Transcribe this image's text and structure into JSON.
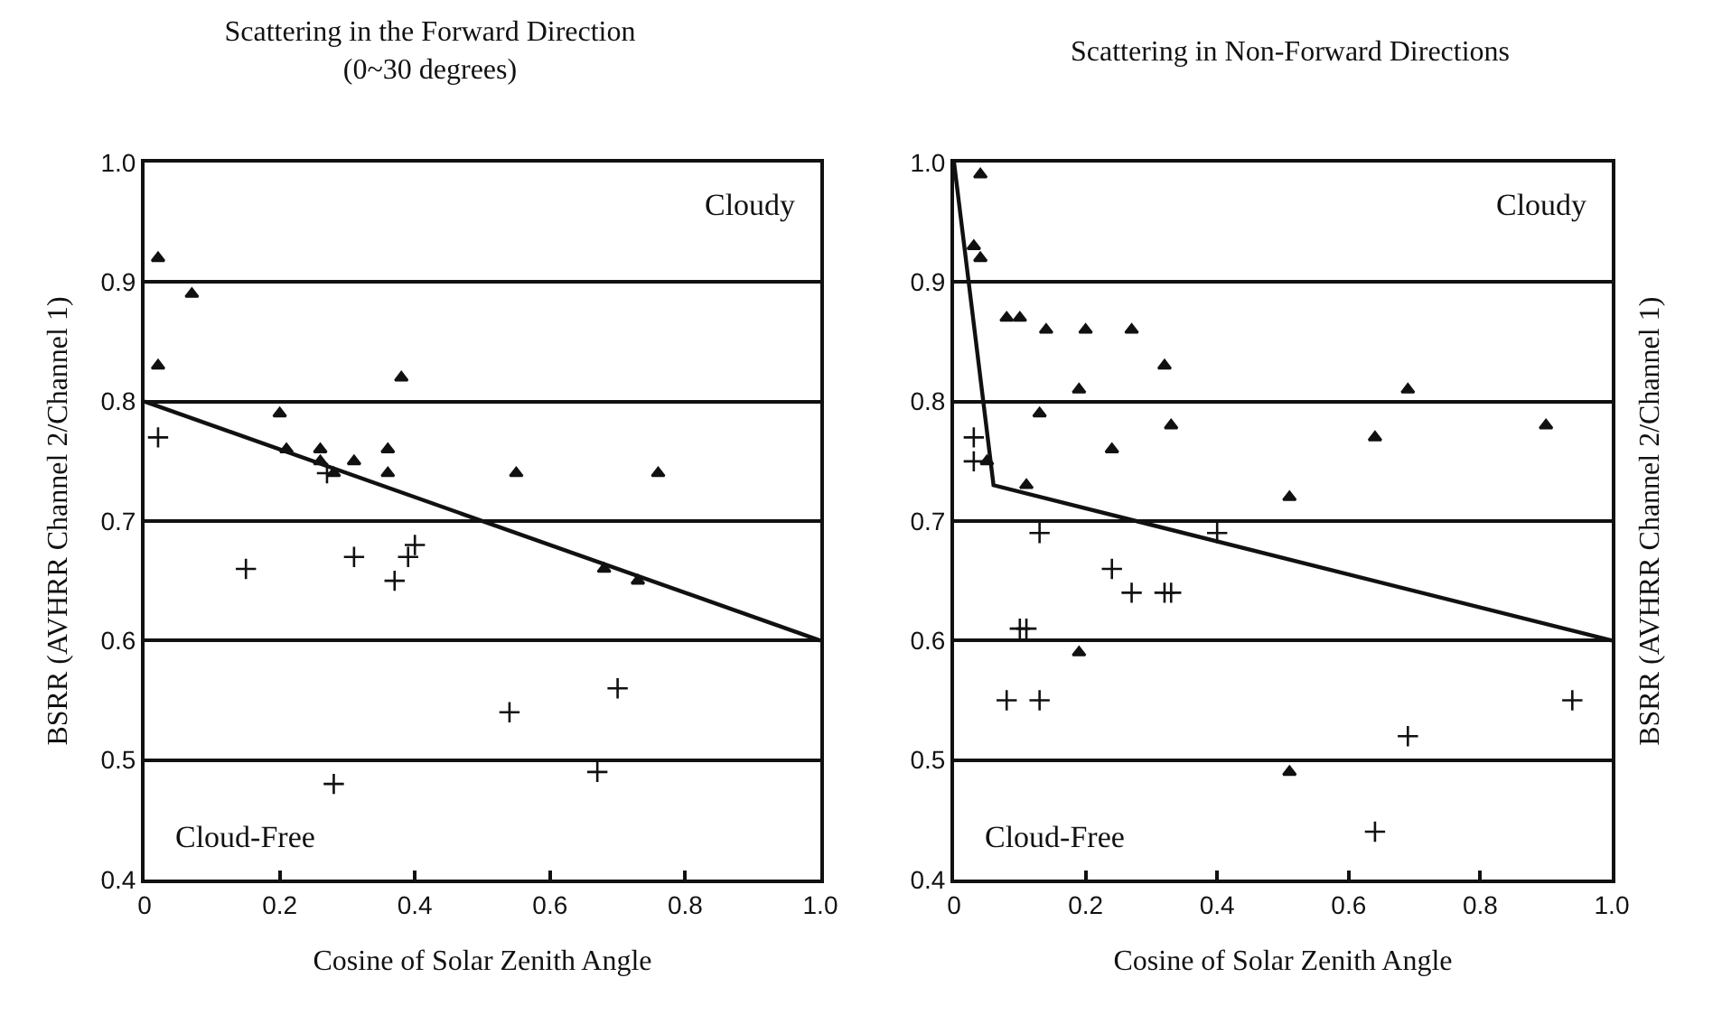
{
  "chart_data": [
    {
      "type": "scatter",
      "title": "Scattering in the Forward Direction\n(0~30 degrees)",
      "xlabel": "Cosine of Solar Zenith Angle",
      "ylabel": "BSRR (AVHRR Channel 2/Channel 1)",
      "annotations": [
        "Cloudy",
        "Cloud-Free"
      ],
      "xlim": [
        0,
        1
      ],
      "ylim": [
        0.4,
        1
      ],
      "xticks": [
        0,
        0.2,
        0.4,
        0.6,
        0.8,
        {
          "value": 1,
          "label": "1.0"
        }
      ],
      "yticks": [
        0.4,
        0.5,
        0.6,
        0.7,
        0.8,
        0.9,
        {
          "value": 1,
          "label": "1.0"
        }
      ],
      "grid": "y",
      "series": [
        {
          "type": "scatter",
          "marker": "triangle",
          "color": "#111111",
          "x": [
            0.02,
            0.02,
            0.07,
            0.2,
            0.21,
            0.26,
            0.26,
            0.28,
            0.31,
            0.36,
            0.36,
            0.38,
            0.55,
            0.76,
            0.68,
            0.73
          ],
          "values": [
            0.92,
            0.83,
            0.89,
            0.79,
            0.76,
            0.76,
            0.75,
            0.74,
            0.75,
            0.74,
            0.76,
            0.82,
            0.74,
            0.74,
            0.66,
            0.65
          ]
        },
        {
          "type": "scatter",
          "marker": "cross",
          "color": "#111111",
          "x": [
            0.02,
            0.15,
            0.27,
            0.31,
            0.37,
            0.39,
            0.4,
            0.28,
            0.54,
            0.7,
            0.67
          ],
          "values": [
            0.77,
            0.66,
            0.74,
            0.67,
            0.65,
            0.67,
            0.68,
            0.48,
            0.54,
            0.56,
            0.49
          ]
        },
        {
          "type": "line",
          "marker": "none",
          "line_style": "solid",
          "color": "#111111",
          "x": [
            0,
            1
          ],
          "values": [
            0.8,
            0.6
          ]
        }
      ]
    },
    {
      "type": "scatter",
      "title": "Scattering in Non-Forward Directions",
      "xlabel": "Cosine of Solar Zenith Angle",
      "ylabel": "BSRR (AVHRR Channel 2/Channel 1)",
      "annotations": [
        "Cloudy",
        "Cloud-Free"
      ],
      "xlim": [
        0,
        1
      ],
      "ylim": [
        0.4,
        1
      ],
      "xticks": [
        0,
        0.2,
        0.4,
        0.6,
        0.8,
        {
          "value": 1,
          "label": "1.0"
        }
      ],
      "yticks": [
        0.4,
        0.5,
        0.6,
        0.7,
        0.8,
        0.9,
        {
          "value": 1,
          "label": "1.0"
        }
      ],
      "grid": "y",
      "series": [
        {
          "type": "scatter",
          "marker": "triangle",
          "color": "#111111",
          "x": [
            0.04,
            0.03,
            0.04,
            0.08,
            0.1,
            0.14,
            0.2,
            0.27,
            0.32,
            0.19,
            0.13,
            0.24,
            0.33,
            0.05,
            0.11,
            0.51,
            0.64,
            0.69,
            0.9,
            0.19,
            0.51
          ],
          "values": [
            0.99,
            0.93,
            0.92,
            0.87,
            0.87,
            0.86,
            0.86,
            0.86,
            0.83,
            0.81,
            0.79,
            0.76,
            0.78,
            0.75,
            0.73,
            0.72,
            0.77,
            0.81,
            0.78,
            0.59,
            0.49
          ]
        },
        {
          "type": "scatter",
          "marker": "cross",
          "color": "#111111",
          "x": [
            0.03,
            0.03,
            0.13,
            0.24,
            0.27,
            0.32,
            0.33,
            0.1,
            0.11,
            0.08,
            0.13,
            0.4,
            0.64,
            0.69,
            0.94
          ],
          "values": [
            0.77,
            0.75,
            0.69,
            0.66,
            0.64,
            0.64,
            0.64,
            0.61,
            0.61,
            0.55,
            0.55,
            0.69,
            0.44,
            0.52,
            0.55
          ]
        },
        {
          "type": "line",
          "marker": "none",
          "line_style": "solid",
          "color": "#111111",
          "x": [
            0,
            0.06,
            1
          ],
          "values": [
            1,
            0.73,
            0.6
          ]
        }
      ]
    }
  ]
}
